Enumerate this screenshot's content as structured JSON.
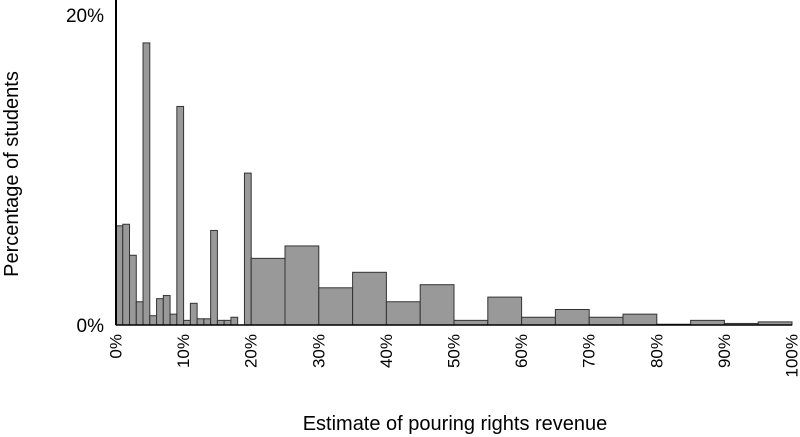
{
  "chart_data": {
    "type": "bar",
    "title": "",
    "xlabel": "Estimate of pouring rights revenue",
    "ylabel": "Percentage of students",
    "xlim": [
      0,
      100
    ],
    "ylim": [
      0,
      20
    ],
    "x_tick_values": [
      0,
      10,
      20,
      30,
      40,
      50,
      60,
      70,
      80,
      90,
      100
    ],
    "x_tick_labels": [
      "0%",
      "10%",
      "20%",
      "30%",
      "40%",
      "50%",
      "60%",
      "70%",
      "80%",
      "90%",
      "100%"
    ],
    "y_tick_values": [
      0,
      20
    ],
    "y_tick_labels": [
      "0%",
      "20%"
    ],
    "grid": false,
    "legend": "none",
    "bar_color": "#999999",
    "edge_color": "#333333",
    "bars": [
      {
        "x0": 0,
        "x1": 1,
        "value": 6.4
      },
      {
        "x0": 1,
        "x1": 2,
        "value": 6.5
      },
      {
        "x0": 2,
        "x1": 3,
        "value": 4.5
      },
      {
        "x0": 3,
        "x1": 4,
        "value": 1.5
      },
      {
        "x0": 4,
        "x1": 5,
        "value": 18.2
      },
      {
        "x0": 5,
        "x1": 6,
        "value": 0.6
      },
      {
        "x0": 6,
        "x1": 7,
        "value": 1.7
      },
      {
        "x0": 7,
        "x1": 8,
        "value": 1.9
      },
      {
        "x0": 8,
        "x1": 9,
        "value": 0.7
      },
      {
        "x0": 9,
        "x1": 10,
        "value": 14.1
      },
      {
        "x0": 10,
        "x1": 11,
        "value": 0.3
      },
      {
        "x0": 11,
        "x1": 12,
        "value": 1.4
      },
      {
        "x0": 12,
        "x1": 13,
        "value": 0.4
      },
      {
        "x0": 13,
        "x1": 14,
        "value": 0.4
      },
      {
        "x0": 14,
        "x1": 15,
        "value": 6.1
      },
      {
        "x0": 15,
        "x1": 16,
        "value": 0.3
      },
      {
        "x0": 16,
        "x1": 17,
        "value": 0.3
      },
      {
        "x0": 17,
        "x1": 18,
        "value": 0.5
      },
      {
        "x0": 19,
        "x1": 20,
        "value": 9.8
      },
      {
        "x0": 20,
        "x1": 25,
        "value": 4.3
      },
      {
        "x0": 25,
        "x1": 30,
        "value": 5.1
      },
      {
        "x0": 30,
        "x1": 35,
        "value": 2.4
      },
      {
        "x0": 35,
        "x1": 40,
        "value": 3.4
      },
      {
        "x0": 40,
        "x1": 45,
        "value": 1.5
      },
      {
        "x0": 45,
        "x1": 50,
        "value": 2.6
      },
      {
        "x0": 50,
        "x1": 55,
        "value": 0.3
      },
      {
        "x0": 55,
        "x1": 60,
        "value": 1.8
      },
      {
        "x0": 60,
        "x1": 65,
        "value": 0.5
      },
      {
        "x0": 65,
        "x1": 70,
        "value": 1.0
      },
      {
        "x0": 70,
        "x1": 75,
        "value": 0.5
      },
      {
        "x0": 75,
        "x1": 80,
        "value": 0.7
      },
      {
        "x0": 80,
        "x1": 85,
        "value": 0.05
      },
      {
        "x0": 85,
        "x1": 90,
        "value": 0.3
      },
      {
        "x0": 90,
        "x1": 95,
        "value": 0.1
      },
      {
        "x0": 95,
        "x1": 100,
        "value": 0.2
      }
    ]
  }
}
